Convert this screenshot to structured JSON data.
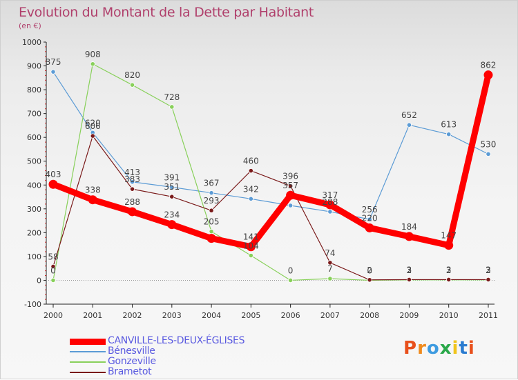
{
  "header": {
    "title": "Evolution du Montant de la Dette par Habitant",
    "subtitle": "(en €)"
  },
  "logo": {
    "letters": [
      "P",
      "r",
      "o",
      "x",
      "i",
      "t",
      "i"
    ],
    "colors": [
      "#e8501c",
      "#f08a1c",
      "#3e9be0",
      "#2aa84a",
      "#f0c41c",
      "#2a7bd0",
      "#e8501c"
    ]
  },
  "chart_data": {
    "type": "line",
    "title": "Evolution du Montant de la Dette par Habitant",
    "subtitle": "(en €)",
    "xlabel": "",
    "ylabel": "",
    "x": [
      "2000",
      "2001",
      "2002",
      "2003",
      "2004",
      "2005",
      "2006",
      "2007",
      "2008",
      "2009",
      "2010",
      "2011"
    ],
    "ylim": [
      -100,
      1000
    ],
    "yticks": [
      -100,
      0,
      100,
      200,
      300,
      400,
      500,
      600,
      700,
      800,
      900,
      1000
    ],
    "grid": false,
    "legend_position": "bottom-left",
    "series": [
      {
        "name": "CANVILLE-LES-DEUX-ÉGLISES",
        "color": "#ff0000",
        "values": [
          403,
          338,
          288,
          234,
          176,
          141,
          357,
          317,
          220,
          184,
          147,
          862
        ],
        "labels": [
          "403",
          "338",
          "288",
          "234",
          "",
          "141",
          "357",
          "317",
          "220",
          "184",
          "147",
          "862"
        ]
      },
      {
        "name": "Bénesville",
        "color": "#5b9bd5",
        "values": [
          875,
          620,
          413,
          391,
          367,
          342,
          314,
          288,
          256,
          652,
          613,
          530
        ],
        "labels": [
          "875",
          "620",
          "413",
          "391",
          "367",
          "342",
          "",
          "288",
          "256",
          "652",
          "613",
          "530"
        ]
      },
      {
        "name": "Gonzeville",
        "color": "#88d05a",
        "values": [
          0,
          908,
          820,
          728,
          205,
          104,
          0,
          7,
          0,
          2,
          2,
          2
        ],
        "labels": [
          "0",
          "908",
          "820",
          "728",
          "205",
          "104",
          "0",
          "7",
          "0",
          "2",
          "2",
          "2"
        ]
      },
      {
        "name": "Brametot",
        "color": "#7a1a1a",
        "values": [
          58,
          606,
          383,
          351,
          293,
          460,
          396,
          74,
          2,
          3,
          3,
          3
        ],
        "labels": [
          "58",
          "606",
          "383",
          "351",
          "293",
          "460",
          "396",
          "74",
          "2",
          "3",
          "3",
          "3"
        ]
      }
    ]
  }
}
